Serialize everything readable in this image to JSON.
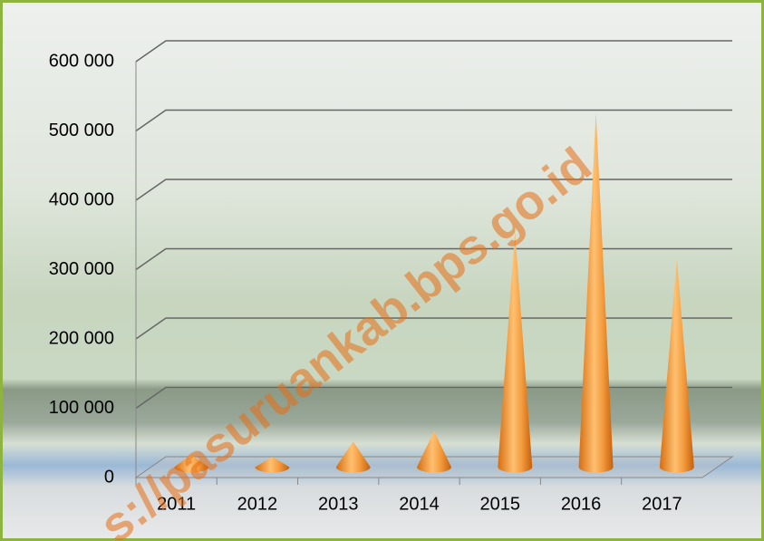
{
  "chart_data": {
    "type": "cone",
    "categories": [
      "2011",
      "2012",
      "2013",
      "2014",
      "2015",
      "2016",
      "2017"
    ],
    "values": [
      18000,
      15000,
      37000,
      52000,
      339000,
      512000,
      300000
    ],
    "color": "#f0892a",
    "ylim": [
      0,
      600000
    ],
    "yticks": [
      0,
      {
        "value": 100000,
        "label": "100 000"
      },
      {
        "value": 200000,
        "label": "200 000"
      },
      {
        "value": 300000,
        "label": "300 000"
      },
      {
        "value": 400000,
        "label": "400 000"
      },
      {
        "value": 500000,
        "label": "500 000"
      },
      {
        "value": 600000,
        "label": "600 000"
      }
    ],
    "grid": true,
    "watermark": "s://pasuruankab.bps.go.id"
  }
}
